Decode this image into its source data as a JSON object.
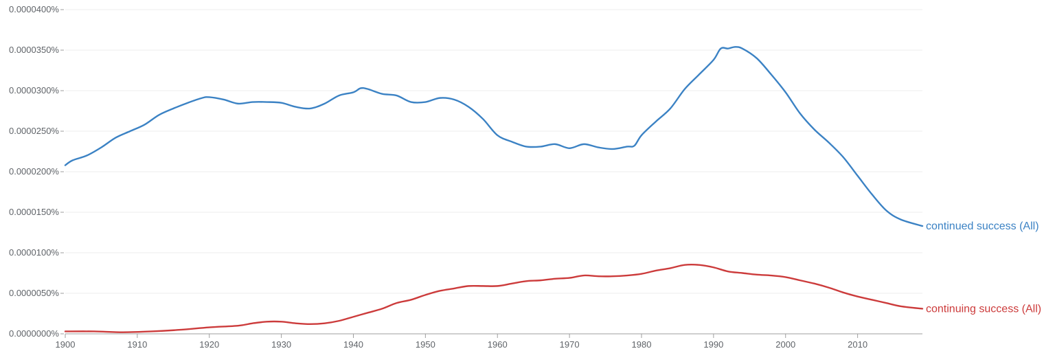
{
  "chart_data": {
    "type": "line",
    "title": "",
    "xlabel": "",
    "ylabel": "",
    "xlim": [
      1900,
      2019
    ],
    "ylim": [
      0,
      4e-07
    ],
    "grid": true,
    "legend": "right-inline",
    "x_ticks": [
      1900,
      1910,
      1920,
      1930,
      1940,
      1950,
      1960,
      1970,
      1980,
      1990,
      2000,
      2010
    ],
    "x_tick_labels": [
      "1900",
      "1910",
      "1920",
      "1930",
      "1940",
      "1950",
      "1960",
      "1970",
      "1980",
      "1990",
      "2000",
      "2010"
    ],
    "y_ticks": [
      0,
      5e-08,
      1e-07,
      1.5e-07,
      2e-07,
      2.5e-07,
      3e-07,
      3.5e-07,
      4e-07
    ],
    "y_tick_labels": [
      "0.0000000%",
      "0.0000050%",
      "0.0000100%",
      "0.0000150%",
      "0.0000200%",
      "0.0000250%",
      "0.0000300%",
      "0.0000350%",
      "0.0000400%"
    ],
    "series": [
      {
        "name": "continued success (All)",
        "color": "#3b82c4",
        "x": [
          1900,
          1901,
          1903,
          1905,
          1907,
          1909,
          1911,
          1913,
          1915,
          1917,
          1919,
          1920,
          1922,
          1924,
          1926,
          1928,
          1930,
          1932,
          1934,
          1936,
          1938,
          1940,
          1941,
          1942,
          1944,
          1946,
          1948,
          1950,
          1952,
          1954,
          1956,
          1958,
          1960,
          1962,
          1964,
          1966,
          1968,
          1970,
          1972,
          1974,
          1976,
          1978,
          1979,
          1980,
          1982,
          1984,
          1986,
          1988,
          1990,
          1991,
          1992,
          1993,
          1994,
          1996,
          1998,
          2000,
          2002,
          2004,
          2006,
          2008,
          2010,
          2012,
          2014,
          2016,
          2019
        ],
        "values": [
          2.08e-07,
          2.14e-07,
          2.2e-07,
          2.3e-07,
          2.42e-07,
          2.5e-07,
          2.58e-07,
          2.7e-07,
          2.78e-07,
          2.85e-07,
          2.91e-07,
          2.92e-07,
          2.89e-07,
          2.84e-07,
          2.86e-07,
          2.86e-07,
          2.85e-07,
          2.8e-07,
          2.78e-07,
          2.84e-07,
          2.94e-07,
          2.98e-07,
          3.03e-07,
          3.02e-07,
          2.96e-07,
          2.94e-07,
          2.86e-07,
          2.86e-07,
          2.91e-07,
          2.89e-07,
          2.8e-07,
          2.65e-07,
          2.45e-07,
          2.37e-07,
          2.31e-07,
          2.31e-07,
          2.34e-07,
          2.29e-07,
          2.34e-07,
          2.3e-07,
          2.28e-07,
          2.31e-07,
          2.32e-07,
          2.45e-07,
          2.62e-07,
          2.78e-07,
          3.02e-07,
          3.2e-07,
          3.38e-07,
          3.52e-07,
          3.52e-07,
          3.54e-07,
          3.52e-07,
          3.4e-07,
          3.2e-07,
          2.98e-07,
          2.72e-07,
          2.52e-07,
          2.36e-07,
          2.18e-07,
          1.95e-07,
          1.72e-07,
          1.52e-07,
          1.41e-07,
          1.33e-07
        ]
      },
      {
        "name": "continuing success (All)",
        "color": "#cc3b3b",
        "x": [
          1900,
          1904,
          1908,
          1912,
          1916,
          1920,
          1924,
          1926,
          1928,
          1930,
          1932,
          1934,
          1936,
          1938,
          1940,
          1942,
          1944,
          1946,
          1948,
          1950,
          1952,
          1954,
          1956,
          1958,
          1960,
          1962,
          1964,
          1966,
          1968,
          1970,
          1972,
          1974,
          1976,
          1978,
          1980,
          1982,
          1984,
          1986,
          1988,
          1990,
          1992,
          1994,
          1996,
          1998,
          2000,
          2002,
          2004,
          2006,
          2008,
          2010,
          2012,
          2014,
          2016,
          2019
        ],
        "values": [
          3e-09,
          3e-09,
          2e-09,
          3e-09,
          5e-09,
          8e-09,
          1e-08,
          1.3e-08,
          1.5e-08,
          1.5e-08,
          1.3e-08,
          1.2e-08,
          1.3e-08,
          1.6e-08,
          2.1e-08,
          2.6e-08,
          3.1e-08,
          3.8e-08,
          4.2e-08,
          4.8e-08,
          5.3e-08,
          5.6e-08,
          5.9e-08,
          5.9e-08,
          5.9e-08,
          6.2e-08,
          6.5e-08,
          6.6e-08,
          6.8e-08,
          6.9e-08,
          7.2e-08,
          7.1e-08,
          7.1e-08,
          7.2e-08,
          7.4e-08,
          7.8e-08,
          8.1e-08,
          8.5e-08,
          8.5e-08,
          8.2e-08,
          7.7e-08,
          7.5e-08,
          7.3e-08,
          7.2e-08,
          7e-08,
          6.6e-08,
          6.2e-08,
          5.7e-08,
          5.1e-08,
          4.6e-08,
          4.2e-08,
          3.8e-08,
          3.4e-08,
          3.1e-08
        ]
      }
    ]
  }
}
